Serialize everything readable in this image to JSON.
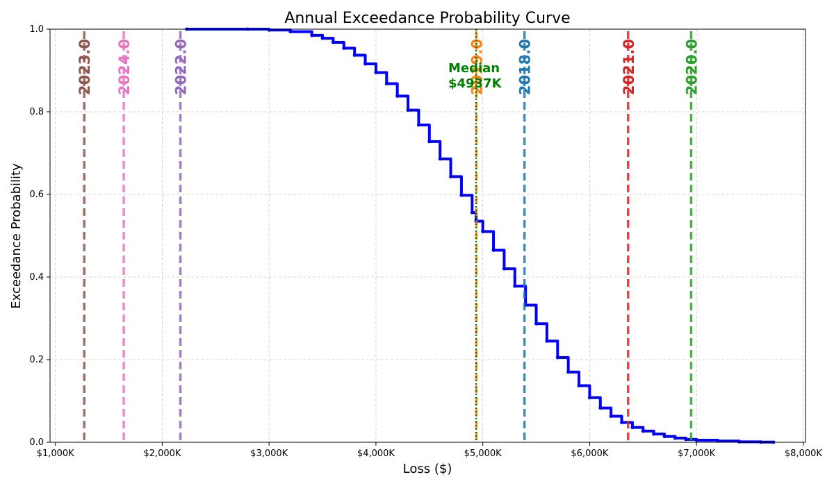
{
  "chart_data": {
    "type": "line",
    "title": "Annual Exceedance Probability Curve",
    "xlabel": "Loss ($)",
    "ylabel": "Exceedance Probability",
    "xlim": [
      950,
      8020
    ],
    "ylim": [
      0,
      1
    ],
    "x_ticks": [
      {
        "value": 1000,
        "label": "$1,000K"
      },
      {
        "value": 2000,
        "label": "$2,000K"
      },
      {
        "value": 3000,
        "label": "$3,000K"
      },
      {
        "value": 4000,
        "label": "$4,000K"
      },
      {
        "value": 5000,
        "label": "$5,000K"
      },
      {
        "value": 6000,
        "label": "$6,000K"
      },
      {
        "value": 7000,
        "label": "$7,000K"
      },
      {
        "value": 8000,
        "label": "$8,000K"
      }
    ],
    "y_ticks": [
      {
        "value": 0,
        "label": "0.0"
      },
      {
        "value": 0.2,
        "label": "0.2"
      },
      {
        "value": 0.4,
        "label": "0.4"
      },
      {
        "value": 0.6,
        "label": "0.6"
      },
      {
        "value": 0.8,
        "label": "0.8"
      },
      {
        "value": 1.0,
        "label": "1.0"
      }
    ],
    "grid": true,
    "curve_color": "#0000ff",
    "series": [
      {
        "x": [
          2230,
          2800,
          3000,
          3200,
          3400,
          3500,
          3600,
          3700,
          3800,
          3900,
          4000,
          4100,
          4200,
          4300,
          4400,
          4500,
          4600,
          4700,
          4800,
          4900,
          4937,
          5000,
          5100,
          5200,
          5300,
          5400,
          5500,
          5600,
          5700,
          5800,
          5900,
          6000,
          6100,
          6200,
          6300,
          6400,
          6500,
          6600,
          6700,
          6800,
          6900,
          7000,
          7200,
          7400,
          7600,
          7720
        ],
        "y": [
          1.0,
          1.0,
          0.998,
          0.994,
          0.985,
          0.978,
          0.968,
          0.954,
          0.937,
          0.916,
          0.895,
          0.868,
          0.838,
          0.804,
          0.768,
          0.728,
          0.686,
          0.643,
          0.598,
          0.556,
          0.535,
          0.51,
          0.465,
          0.42,
          0.378,
          0.332,
          0.287,
          0.245,
          0.205,
          0.17,
          0.137,
          0.108,
          0.083,
          0.063,
          0.048,
          0.036,
          0.027,
          0.02,
          0.014,
          0.01,
          0.007,
          0.005,
          0.003,
          0.001,
          0.0005,
          0.0
        ]
      }
    ],
    "year_markers": [
      {
        "year": "2023.0",
        "value": 1270,
        "color": "#8c564b"
      },
      {
        "year": "2024.0",
        "value": 1640,
        "color": "#e377c2"
      },
      {
        "year": "2022.0",
        "value": 2170,
        "color": "#9467bd"
      },
      {
        "year": "2019.0",
        "value": 4940,
        "color": "#ff7f0e"
      },
      {
        "year": "2018.0",
        "value": 5390,
        "color": "#1f77b4"
      },
      {
        "year": "2021.0",
        "value": 6360,
        "color": "#d62728"
      },
      {
        "year": "2020.0",
        "value": 6950,
        "color": "#2ca02c"
      }
    ],
    "median": {
      "value": 4937,
      "label_line1": "Median",
      "label_line2": "$4937K",
      "color": "#008000"
    }
  }
}
